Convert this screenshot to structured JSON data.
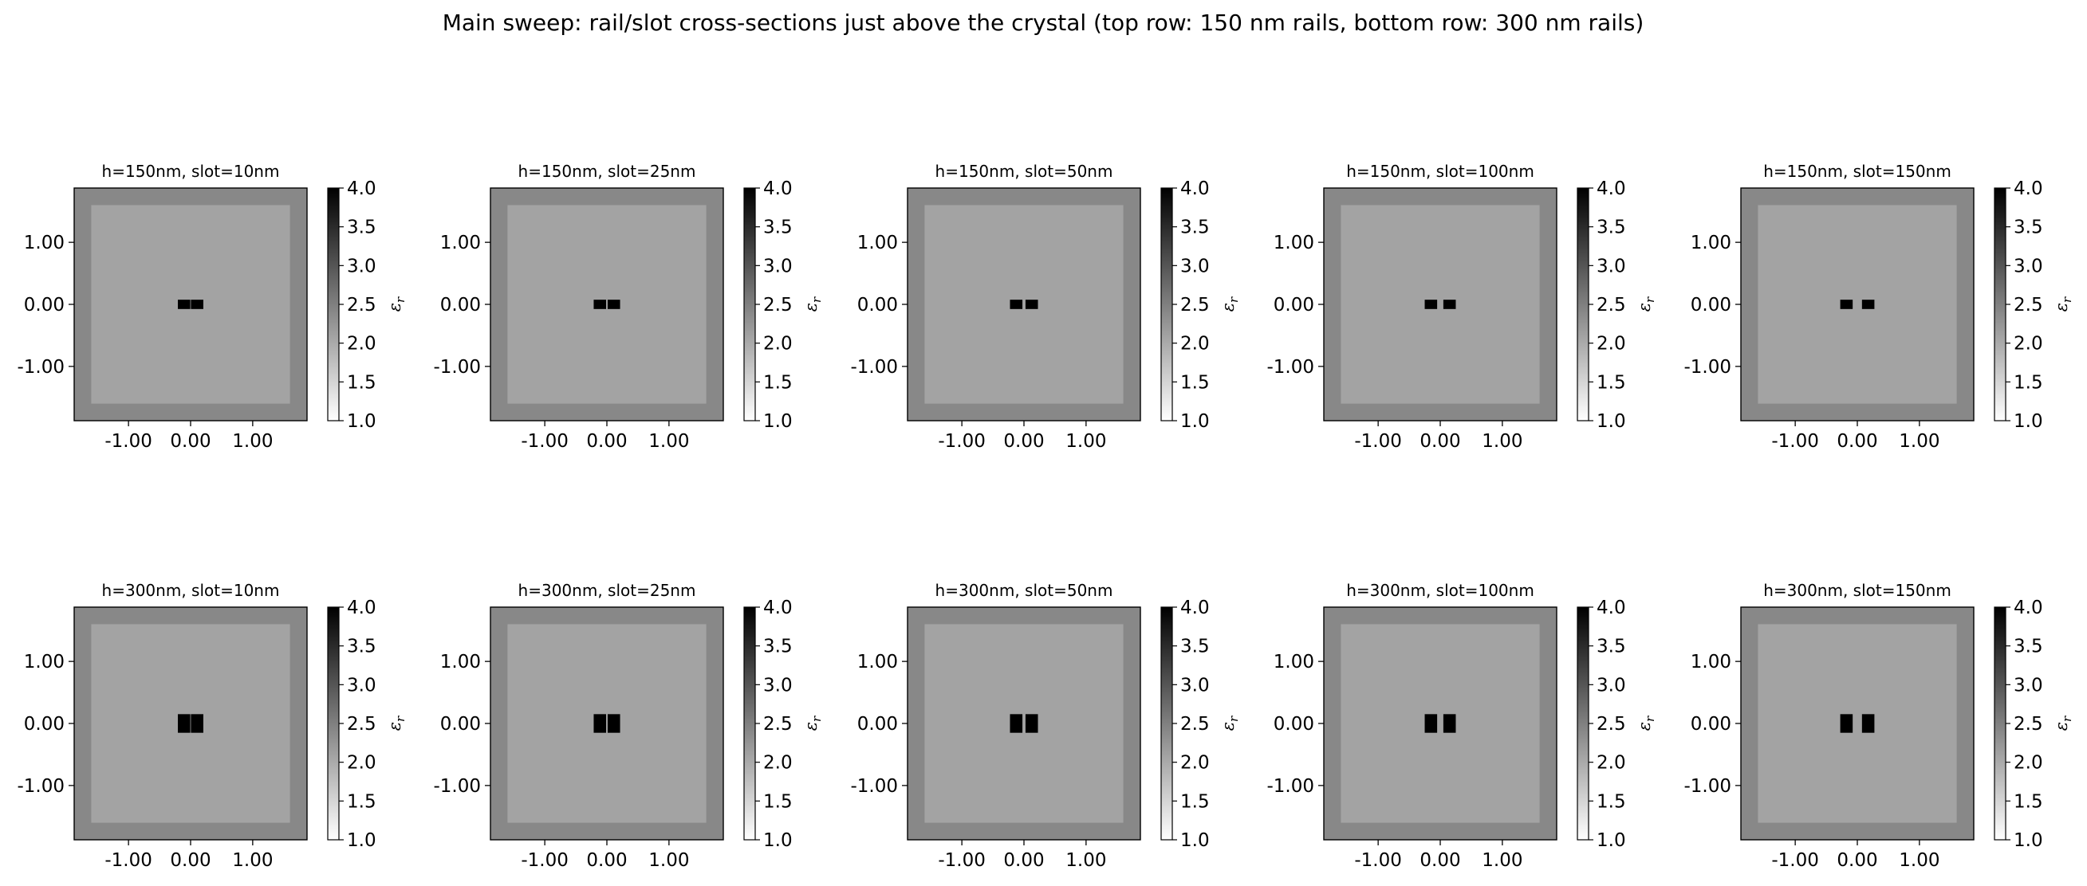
{
  "suptitle": "Main sweep: rail/slot cross-sections just above the crystal (top row: 150 nm rails, bottom row: 300 nm rails)",
  "colors": {
    "cladding": "#888888",
    "domain": "#a3a3a3",
    "rail": "#000000",
    "cmap_low": "#ffffff",
    "cmap_high": "#000000"
  },
  "chart_data": {
    "type": "heatmap",
    "cmap": "gray_r",
    "x_ticks": [
      -1.0,
      0.0,
      1.0
    ],
    "y_ticks": [
      1.0,
      0.0,
      -1.0
    ],
    "x_tick_labels": [
      "-1.00",
      "0.00",
      "1.00"
    ],
    "y_tick_labels": [
      "1.00",
      "0.00",
      "-1.00"
    ],
    "xlim": [
      -1.875,
      1.875
    ],
    "ylim": [
      -1.875,
      1.875
    ],
    "inner_region": [
      -1.6,
      1.6
    ],
    "rail_width": 0.2,
    "eps_cladding": 2.0,
    "eps_domain": 1.8,
    "eps_rail": 4.0,
    "colorbar": {
      "label": "ε",
      "label_sub": "r",
      "vmin": 1.0,
      "vmax": 4.0,
      "ticks": [
        "1.0",
        "1.5",
        "2.0",
        "2.5",
        "3.0",
        "3.5",
        "4.0"
      ]
    },
    "panels": [
      {
        "title": "h=150nm, slot=10nm",
        "h_nm": 150,
        "slot_nm": 10
      },
      {
        "title": "h=150nm, slot=25nm",
        "h_nm": 150,
        "slot_nm": 25
      },
      {
        "title": "h=150nm, slot=50nm",
        "h_nm": 150,
        "slot_nm": 50
      },
      {
        "title": "h=150nm, slot=100nm",
        "h_nm": 150,
        "slot_nm": 100
      },
      {
        "title": "h=150nm, slot=150nm",
        "h_nm": 150,
        "slot_nm": 150
      },
      {
        "title": "h=300nm, slot=10nm",
        "h_nm": 300,
        "slot_nm": 10
      },
      {
        "title": "h=300nm, slot=25nm",
        "h_nm": 300,
        "slot_nm": 25
      },
      {
        "title": "h=300nm, slot=50nm",
        "h_nm": 300,
        "slot_nm": 50
      },
      {
        "title": "h=300nm, slot=100nm",
        "h_nm": 300,
        "slot_nm": 100
      },
      {
        "title": "h=300nm, slot=150nm",
        "h_nm": 300,
        "slot_nm": 150
      }
    ]
  }
}
